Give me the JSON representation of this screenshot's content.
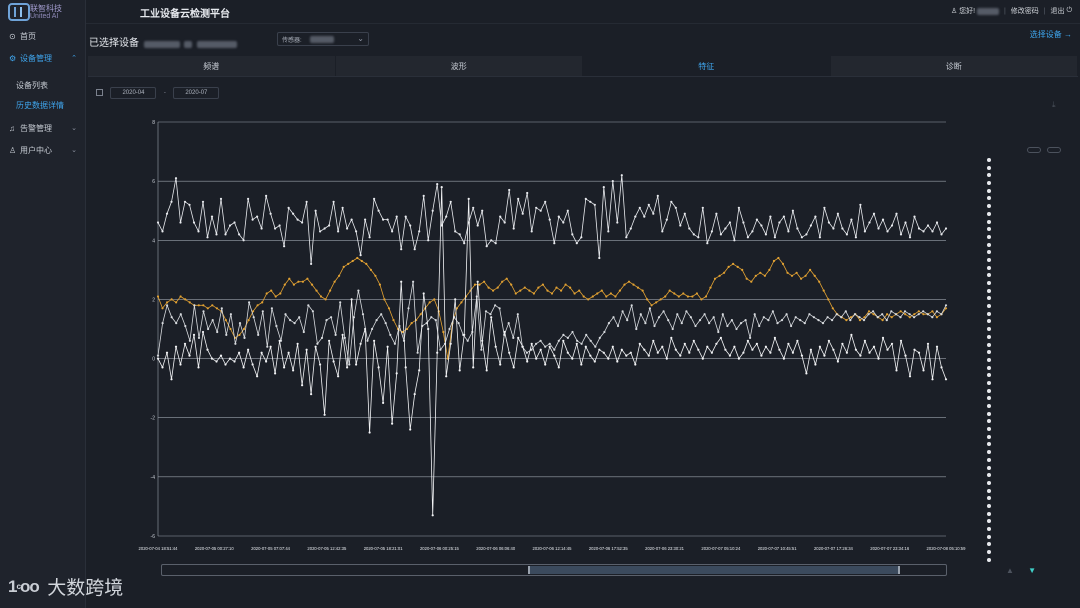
{
  "brand": {
    "name_cn": "联智科技",
    "name_en": "United AI",
    "watermark": "大数跨境"
  },
  "app_title": "工业设备云检测平台",
  "user": {
    "greeting": "您好!",
    "change_password": "修改密码",
    "logout": "退出"
  },
  "sidebar": {
    "home": "首页",
    "device_mgmt": "设备管理",
    "device_list": "设备列表",
    "history": "历史数据详情",
    "alarm_mgmt": "告警管理",
    "user_center": "用户中心"
  },
  "device": {
    "selected_label": "已选择设备",
    "sensor_label": "传感器:",
    "select_device": "选择设备 →"
  },
  "tabs": [
    "频谱",
    "波形",
    "特征",
    "诊断"
  ],
  "date_range": {
    "start": "2020-04",
    "end": "2020-07",
    "separator": "-"
  },
  "colors": {
    "accent": "#3fa6ee",
    "orange_series": "#e3a232",
    "white_series": "#e8eaee"
  },
  "icons": {
    "home": "home-icon",
    "device": "gear-icon",
    "alarm": "bell-icon",
    "user": "user-icon",
    "calendar": "calendar-icon",
    "download": "download-icon"
  },
  "legend": {
    "items": [
      "",
      "",
      "",
      "",
      "",
      "",
      "",
      "",
      "",
      "",
      "",
      "",
      "",
      "",
      "",
      "",
      "",
      "",
      "",
      "",
      "",
      "",
      "",
      "",
      "",
      "",
      "",
      "",
      "",
      "",
      "",
      "",
      "",
      "",
      "",
      "",
      "",
      "",
      "",
      "",
      "",
      "",
      "",
      "",
      "",
      "",
      "",
      "",
      "",
      "",
      "",
      "",
      ""
    ],
    "active_indices": [
      7,
      10,
      13,
      24
    ]
  },
  "chart_data": {
    "type": "line",
    "ylim": [
      -6,
      8
    ],
    "yticks": [
      -6,
      -4,
      -2,
      0,
      2,
      4,
      6,
      8
    ],
    "xtick_labels": [
      "2020-07-04 18:51:44",
      "2020-07-05 00:27:10",
      "2020-07-05 07:07:44",
      "2020-07-05 12:42:35",
      "2020-07-05 18:21:01",
      "2020-07-06 00:25:15",
      "2020-07-06 06:06:40",
      "2020-07-06 12:14:45",
      "2020-07-06 17:52:35",
      "2020-07-06 23:30:21",
      "2020-07-07 05:10:24",
      "2020-07-07 10:45:51",
      "2020-07-07 17:26:34",
      "2020-07-07 23:34:16",
      "2020-07-08 05:10:59"
    ],
    "grid": true,
    "series": [
      {
        "color": "#e8eaee",
        "values": [
          4.6,
          4.3,
          4.9,
          5.3,
          6.1,
          4.6,
          5.3,
          5.2,
          4.6,
          4.3,
          5.3,
          4.1,
          4.8,
          4.2,
          5.4,
          4.2,
          4.5,
          4.6,
          4.2,
          4.0,
          5.4,
          4.7,
          4.8,
          4.4,
          5.5,
          4.9,
          4.4,
          4.5,
          3.8,
          5.1,
          4.9,
          4.7,
          4.6,
          5.3,
          3.2,
          5.0,
          4.3,
          4.4,
          4.5,
          5.3,
          4.3,
          5.1,
          4.4,
          4.7,
          4.3,
          3.5,
          4.7,
          4.1,
          5.4,
          5.0,
          4.7,
          4.7,
          4.3,
          4.8,
          3.7,
          4.8,
          4.5,
          3.7,
          4.3,
          5.5,
          4.0,
          5.0,
          5.9,
          4.5,
          4.8,
          5.3,
          4.3,
          4.2,
          3.9,
          4.6,
          5.1,
          4.5,
          5.0,
          3.8,
          4.0,
          3.9,
          4.8,
          4.6,
          5.7,
          4.4,
          5.4,
          4.9,
          5.6,
          4.3,
          5.1,
          5.0,
          5.3,
          4.7,
          3.9,
          4.8,
          4.6,
          5.0,
          4.2,
          3.9,
          4.1,
          5.4,
          5.3,
          5.2,
          3.4,
          5.8,
          4.3,
          6.0,
          4.6,
          6.2,
          4.1,
          4.4,
          4.8,
          5.1,
          4.8,
          5.2,
          4.9,
          5.5,
          4.3,
          4.7,
          5.3,
          5.1,
          4.5,
          4.9,
          4.4,
          4.2,
          4.1,
          5.1,
          3.9,
          4.3,
          4.9,
          4.2,
          4.4,
          4.6,
          4.0,
          5.1,
          4.6,
          4.1,
          4.3,
          4.7,
          4.5,
          4.2,
          4.8,
          4.1,
          4.6,
          4.8,
          4.3,
          5.0,
          4.4,
          4.1,
          4.2,
          4.5,
          4.8,
          4.1,
          5.1,
          4.6,
          4.4,
          4.9,
          4.4,
          4.2,
          4.7,
          4.1,
          5.2,
          4.3,
          4.6,
          4.9,
          4.4,
          4.7,
          4.3,
          4.5,
          4.9,
          4.2,
          4.6,
          4.1,
          4.8,
          4.4,
          4.3,
          4.5,
          4.3,
          4.6,
          4.2,
          4.4
        ]
      },
      {
        "color": "#e3a232",
        "values": [
          2.1,
          1.7,
          1.9,
          2.0,
          1.9,
          2.1,
          2.0,
          1.9,
          1.8,
          1.8,
          1.8,
          1.7,
          1.8,
          1.7,
          1.6,
          1.3,
          1.0,
          0.7,
          0.8,
          1.0,
          1.3,
          1.6,
          1.8,
          1.9,
          2.2,
          2.3,
          2.1,
          2.2,
          2.5,
          2.7,
          2.5,
          2.6,
          2.6,
          2.7,
          2.5,
          2.3,
          2.1,
          2.0,
          2.3,
          2.6,
          2.8,
          3.1,
          3.2,
          3.3,
          3.4,
          3.3,
          3.2,
          3.0,
          2.8,
          2.5,
          2.0,
          1.7,
          1.3,
          1.0,
          0.9,
          1.0,
          1.2,
          1.3,
          1.5,
          1.7,
          1.9,
          2.0,
          1.6,
          0.9,
          0.0,
          1.2,
          1.7,
          1.9,
          2.1,
          2.3,
          2.5,
          2.5,
          2.6,
          2.4,
          2.3,
          2.4,
          2.6,
          2.7,
          2.5,
          2.2,
          2.3,
          2.4,
          2.3,
          2.2,
          2.4,
          2.5,
          2.3,
          2.2,
          2.4,
          2.3,
          2.5,
          2.4,
          2.2,
          2.3,
          2.1,
          2.0,
          2.1,
          2.2,
          2.3,
          2.1,
          2.2,
          2.1,
          2.3,
          2.5,
          2.6,
          2.5,
          2.4,
          2.3,
          2.0,
          1.8,
          1.9,
          2.0,
          2.1,
          2.3,
          2.2,
          2.1,
          2.2,
          2.1,
          2.1,
          2.2,
          2.0,
          2.1,
          2.4,
          2.7,
          2.8,
          2.9,
          3.1,
          3.2,
          3.1,
          3.0,
          2.7,
          2.6,
          2.8,
          2.9,
          2.8,
          3.0,
          3.3,
          3.4,
          3.2,
          2.9,
          2.8,
          2.9,
          2.7,
          2.8,
          3.0,
          2.8,
          2.6,
          2.3,
          2.0,
          1.7,
          1.5,
          1.4,
          1.3,
          1.4,
          1.5,
          1.3,
          1.4,
          1.6,
          1.5,
          1.4,
          1.3,
          1.5,
          1.4,
          1.5,
          1.6,
          1.5,
          1.4,
          1.5,
          1.6,
          1.5,
          1.5,
          1.6,
          1.4,
          1.5,
          1.7
        ]
      },
      {
        "color": "#d7dade",
        "values": [
          0.1,
          1.2,
          1.8,
          1.4,
          1.2,
          1.5,
          1.1,
          0.6,
          1.8,
          0.7,
          1.6,
          1.0,
          1.3,
          0.9,
          1.7,
          0.8,
          1.5,
          0.5,
          1.2,
          0.7,
          1.9,
          1.4,
          0.8,
          1.6,
          0.4,
          1.7,
          1.1,
          0.6,
          1.5,
          1.3,
          1.2,
          1.4,
          0.9,
          1.8,
          1.6,
          0.5,
          0.7,
          1.3,
          1.4,
          0.8,
          1.9,
          0.7,
          -0.2,
          1.4,
          2.3,
          1.5,
          0.6,
          1.0,
          1.3,
          1.5,
          1.2,
          0.8,
          0.5,
          1.1,
          0.6,
          1.7,
          2.6,
          0.2,
          1.1,
          1.2,
          1.4,
          1.3,
          0.3,
          0.5,
          1.0,
          1.4,
          1.2,
          0.8,
          0.6,
          0.9,
          2.1,
          0.3,
          1.6,
          1.5,
          1.8,
          1.7,
          0.8,
          1.2,
          0.7,
          1.5,
          0.4,
          0.2,
          0.3,
          0.5,
          0.6,
          0.4,
          0.5,
          0.3,
          0.6,
          0.8,
          0.7,
          0.9,
          0.6,
          0.5,
          0.8,
          0.6,
          0.4,
          0.7,
          0.9,
          1.2,
          1.4,
          1.1,
          1.6,
          1.3,
          1.8,
          1.0,
          1.5,
          1.2,
          1.7,
          1.1,
          1.4,
          1.6,
          1.3,
          1.0,
          1.5,
          1.2,
          1.6,
          1.4,
          1.1,
          1.3,
          1.5,
          1.2,
          1.4,
          0.9,
          1.5,
          1.1,
          1.3,
          1.0,
          1.2,
          1.3,
          0.7,
          1.5,
          1.1,
          1.4,
          1.3,
          1.6,
          1.2,
          1.3,
          1.5,
          1.1,
          1.4,
          1.3,
          1.2,
          1.5,
          1.4,
          1.3,
          1.2,
          1.4,
          1.3,
          1.5,
          1.4,
          1.6,
          1.3,
          1.5,
          1.4,
          1.3,
          1.5,
          1.6,
          1.4,
          1.5,
          1.3,
          1.6,
          1.5,
          1.4,
          1.6,
          1.5,
          1.4,
          1.5,
          1.6,
          1.5,
          1.4,
          1.6,
          1.5,
          1.8
        ]
      },
      {
        "color": "#f2f3f5",
        "values": [
          0.0,
          -0.3,
          0.2,
          -0.7,
          0.4,
          -0.2,
          0.5,
          0.1,
          0.8,
          -0.3,
          0.9,
          0.3,
          0.0,
          -0.1,
          0.1,
          -0.2,
          0.0,
          -0.1,
          0.2,
          -0.3,
          0.3,
          -0.2,
          -0.6,
          0.2,
          -0.1,
          0.4,
          -0.5,
          0.6,
          -0.3,
          0.2,
          -0.4,
          0.5,
          -0.9,
          0.3,
          -1.2,
          0.4,
          -0.2,
          -1.9,
          0.6,
          -0.1,
          -0.6,
          0.8,
          -0.3,
          2.0,
          -0.2,
          0.5,
          1.0,
          -2.5,
          0.6,
          -0.3,
          -1.5,
          0.4,
          -2.2,
          -0.5,
          2.6,
          -0.3,
          -2.4,
          -1.2,
          -0.4,
          2.2,
          1.0,
          -5.3,
          0.2,
          5.8,
          -0.6,
          0.5,
          2.0,
          -0.4,
          0.8,
          5.4,
          -0.3,
          2.6,
          0.6,
          -0.4,
          1.4,
          0.4,
          -0.2,
          0.9,
          0.2,
          -0.3,
          0.7,
          0.4,
          -0.1,
          0.5,
          0.0,
          0.3,
          -0.2,
          0.4,
          0.1,
          -0.3,
          0.6,
          0.2,
          0.0,
          0.5,
          -0.2,
          0.4,
          0.1,
          -0.1,
          0.3,
          0.2,
          0.0,
          0.4,
          -0.1,
          0.3,
          0.1,
          0.2,
          -0.2,
          0.5,
          0.3,
          0.1,
          0.6,
          0.2,
          0.4,
          0.0,
          0.7,
          0.3,
          0.1,
          0.5,
          0.2,
          0.6,
          0.3,
          0.0,
          0.4,
          0.2,
          0.5,
          0.7,
          0.3,
          0.1,
          0.4,
          0.0,
          0.2,
          0.6,
          0.3,
          0.5,
          0.1,
          0.4,
          0.2,
          0.7,
          0.3,
          0.0,
          0.5,
          0.2,
          0.6,
          0.1,
          -0.5,
          0.3,
          -0.2,
          0.4,
          0.1,
          0.6,
          0.3,
          -0.1,
          0.5,
          0.2,
          0.8,
          0.3,
          0.1,
          0.6,
          0.2,
          0.4,
          0.0,
          0.7,
          0.3,
          0.5,
          -0.4,
          0.6,
          0.1,
          -0.6,
          0.3,
          0.2,
          -0.4,
          0.5,
          -0.7,
          0.4,
          -0.3,
          -0.7
        ]
      }
    ]
  }
}
